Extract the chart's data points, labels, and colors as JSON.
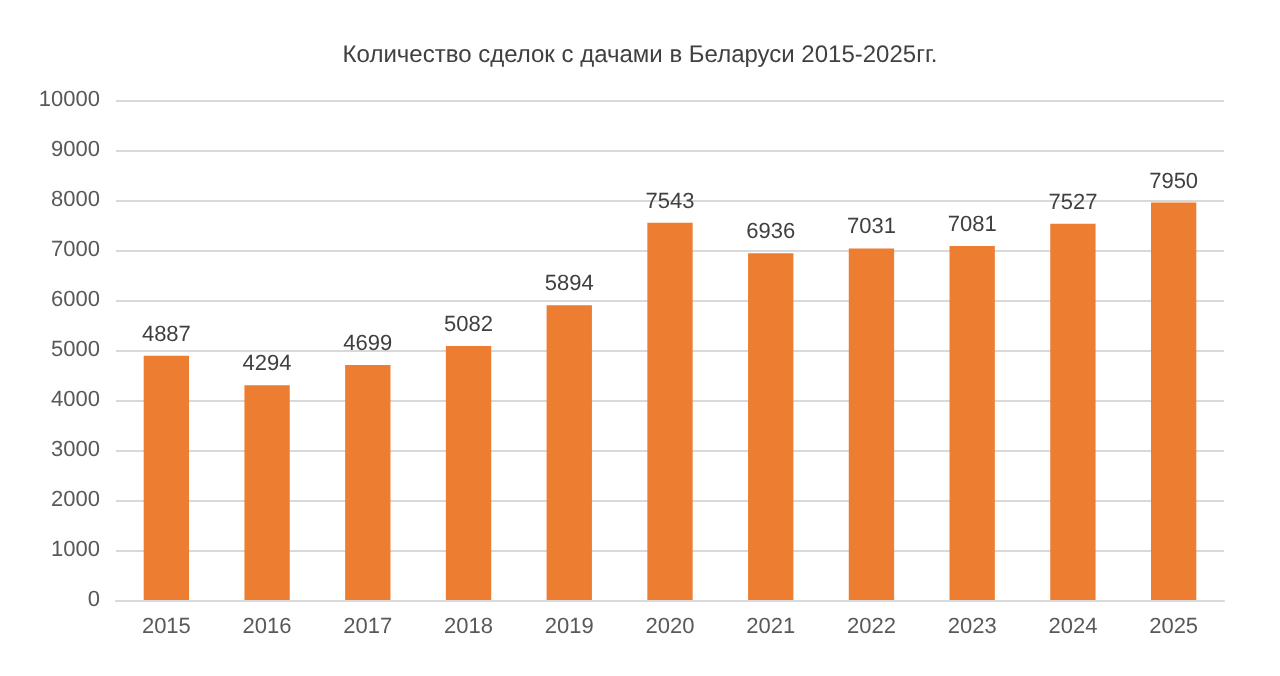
{
  "chart_data": {
    "type": "bar",
    "title": "Количество сделок с дачами в Беларуси 2015-2025гг.",
    "categories": [
      "2015",
      "2016",
      "2017",
      "2018",
      "2019",
      "2020",
      "2021",
      "2022",
      "2023",
      "2024",
      "2025"
    ],
    "values": [
      4887,
      4294,
      4699,
      5082,
      5894,
      7543,
      6936,
      7031,
      7081,
      7527,
      7950
    ],
    "color": "#ed7d31",
    "ylim": [
      0,
      10000
    ],
    "yticks": [
      0,
      1000,
      2000,
      3000,
      4000,
      5000,
      6000,
      7000,
      8000,
      9000,
      10000
    ],
    "grid": "y",
    "data_labels": true
  }
}
